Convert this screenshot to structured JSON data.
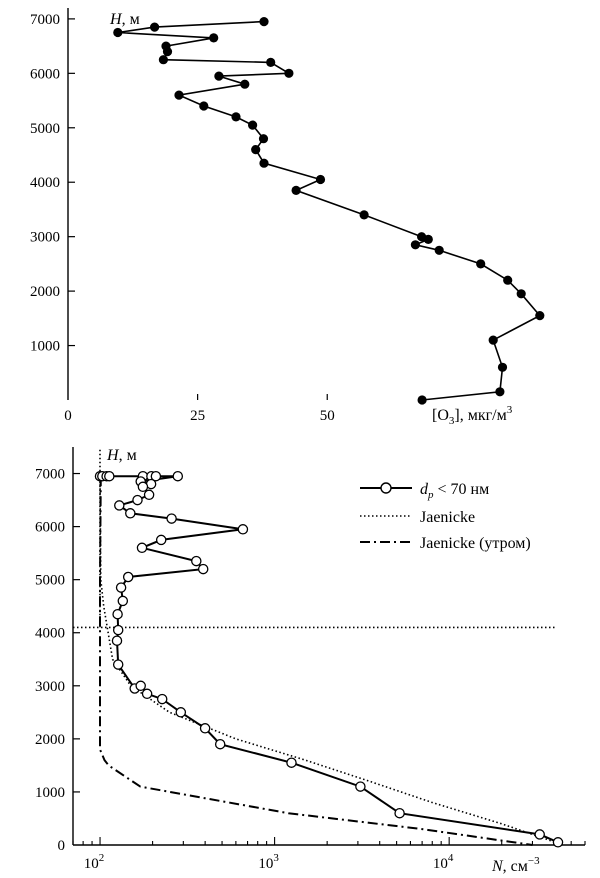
{
  "chart_data": [
    {
      "type": "line",
      "xlabel": "[O3], мкг/м3",
      "ylabel": "H, м",
      "x_ticks": [
        "0",
        "25",
        "50"
      ],
      "y_ticks": [
        "1000",
        "2000",
        "3000",
        "4000",
        "5000",
        "6000",
        "7000"
      ],
      "xlim": [
        0,
        92
      ],
      "ylim": [
        0,
        7200
      ],
      "grid": false,
      "series": [
        {
          "marker": "filled-circle",
          "x": [
            37.8,
            16.7,
            9.6,
            28.1,
            18.9,
            19.2,
            18.4,
            39.1,
            42.6,
            29.1,
            34.1,
            21.4,
            26.2,
            32.4,
            35.6,
            37.7,
            36.2,
            37.8,
            48.7,
            44.0,
            57.1,
            68.2,
            69.5,
            67.0,
            71.6,
            79.6,
            84.8,
            87.4,
            91.0,
            82.0,
            83.8,
            83.3,
            68.3
          ],
          "y": [
            6950,
            6850,
            6750,
            6650,
            6500,
            6400,
            6250,
            6200,
            6000,
            5950,
            5800,
            5600,
            5400,
            5200,
            5050,
            4800,
            4600,
            4350,
            4050,
            3850,
            3400,
            3000,
            2950,
            2850,
            2750,
            2500,
            2200,
            1950,
            1550,
            1100,
            600,
            150,
            0
          ]
        }
      ]
    },
    {
      "type": "line",
      "xlabel": "N, см−3",
      "ylabel": "H, м",
      "x_scale": "log",
      "x_ticks": [
        {
          "base": "10",
          "exp": "2"
        },
        {
          "base": "10",
          "exp": "3"
        },
        {
          "base": "10",
          "exp": "4"
        }
      ],
      "y_ticks": [
        "0",
        "1000",
        "2000",
        "3000",
        "4000",
        "5000",
        "6000",
        "7000"
      ],
      "xlim": [
        70,
        60000
      ],
      "ylim": [
        0,
        7500
      ],
      "grid": false,
      "legend_position": "top-right",
      "series": [
        {
          "name": "dp < 70 нм",
          "name_base": "d",
          "name_sub": "p",
          "name_rest": " < 70 нм",
          "marker": "open-circle",
          "line": "solid",
          "x": [
            100,
            103,
            109,
            113,
            176,
            197,
            209,
            279,
            171,
            196,
            176,
            191,
            164,
            129,
            149,
            257,
            658,
            224,
            174,
            356,
            390,
            145,
            132,
            135,
            126,
            127,
            125,
            127,
            158,
            171,
            186,
            227,
            290,
            400,
            488,
            1250,
            3100,
            5200,
            33000,
            42000
          ],
          "y": [
            6950,
            6950,
            6950,
            6950,
            6950,
            6950,
            6950,
            6950,
            6850,
            6800,
            6750,
            6600,
            6500,
            6400,
            6250,
            6150,
            5950,
            5750,
            5600,
            5350,
            5200,
            5050,
            4850,
            4600,
            4350,
            4050,
            3850,
            3400,
            2950,
            3000,
            2850,
            2750,
            2500,
            2200,
            1900,
            1550,
            1100,
            600,
            200,
            50
          ]
        },
        {
          "name": "Jaenicke",
          "line": "dotted",
          "x": [
            100,
            101,
            105,
            118,
            150,
            250,
            600,
            1500,
            3500,
            8000,
            20000,
            45000,
            180,
            100,
            100,
            105
          ],
          "y": [
            6950,
            5000,
            4500,
            3500,
            3000,
            2500,
            2000,
            1600,
            1200,
            800,
            400,
            0,
            4100,
            4100,
            6950,
            6950
          ],
          "note": "curve plus horizontal dotted line at 4100 m"
        },
        {
          "name": "Jaenicke (утром)",
          "line": "dash-dot",
          "x": [
            101,
            100,
            100,
            100,
            100,
            106,
            112,
            170,
            1200,
            7000,
            30000
          ],
          "y": [
            6950,
            5000,
            4000,
            3000,
            1800,
            1600,
            1500,
            1100,
            600,
            300,
            0
          ]
        }
      ]
    }
  ]
}
